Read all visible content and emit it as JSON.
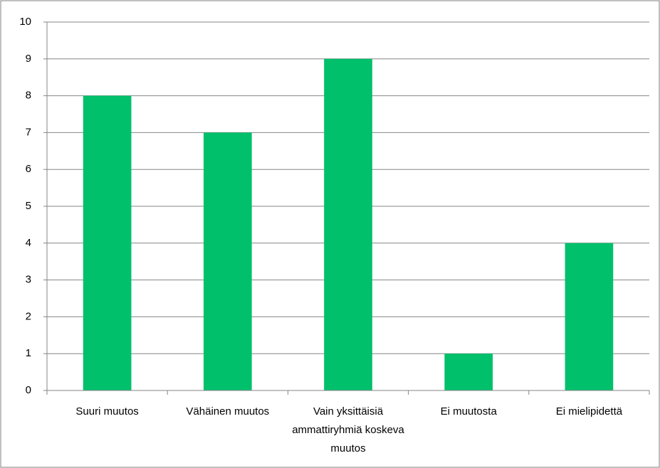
{
  "chart_data": {
    "type": "bar",
    "categories": [
      "Suuri muutos",
      "Vähäinen muutos",
      "Vain yksittäisiä ammattiryhmiä koskeva muutos",
      "Ei muutosta",
      "Ei mielipidettä"
    ],
    "values": [
      8,
      7,
      9,
      1,
      4
    ],
    "color": "#00c06b",
    "ylim": [
      0,
      10
    ],
    "yticks": [
      0,
      1,
      2,
      3,
      4,
      5,
      6,
      7,
      8,
      9,
      10
    ],
    "grid": true
  }
}
